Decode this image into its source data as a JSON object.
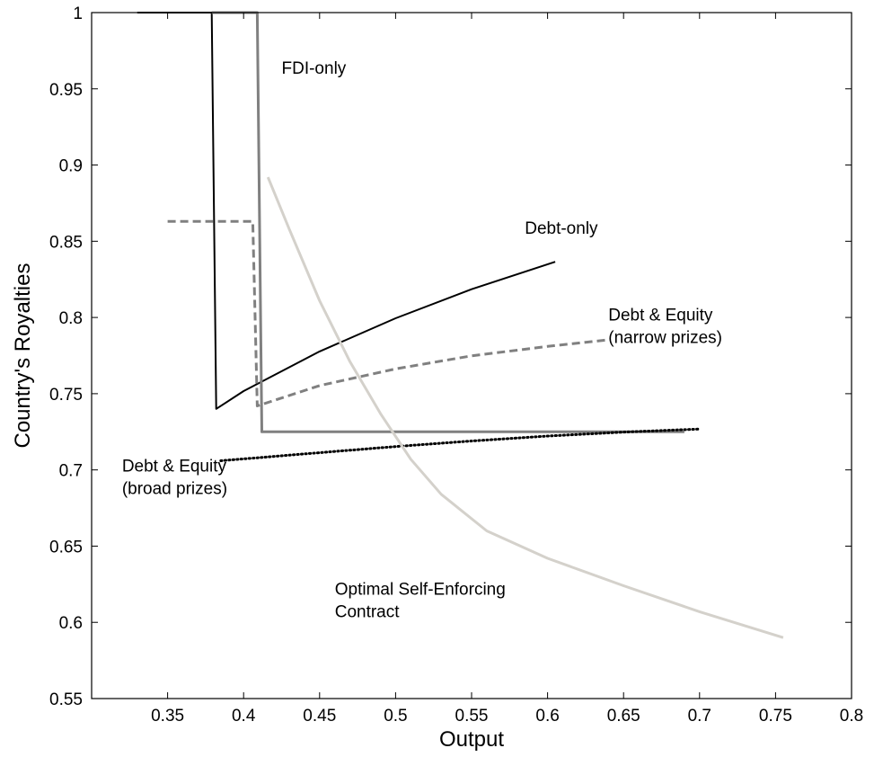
{
  "chart_data": {
    "type": "line",
    "title": "",
    "xlabel": "Output",
    "ylabel": "Country's Royalties",
    "xlim": [
      0.3,
      0.8
    ],
    "ylim": [
      0.55,
      1.0
    ],
    "xticks": [
      0.35,
      0.4,
      0.45,
      0.5,
      0.55,
      0.6,
      0.65,
      0.7,
      0.75,
      0.8
    ],
    "yticks": [
      0.55,
      0.6,
      0.65,
      0.7,
      0.75,
      0.8,
      0.85,
      0.9,
      0.95,
      1.0
    ],
    "xtick_labels": [
      "0.35",
      "0.4",
      "0.45",
      "0.5",
      "0.55",
      "0.6",
      "0.65",
      "0.7",
      "0.75",
      "0.8"
    ],
    "ytick_labels": [
      "0.55",
      "0.6",
      "0.65",
      "0.7",
      "0.75",
      "0.8",
      "0.85",
      "0.9",
      "0.95",
      "1"
    ],
    "grid": false,
    "legend": "none",
    "series": [
      {
        "color": "#000000",
        "style": "solid",
        "width": 2,
        "points": [
          [
            0.33,
            1.0
          ],
          [
            0.379,
            1.0
          ],
          [
            0.382,
            0.74
          ],
          [
            0.4,
            0.7517
          ],
          [
            0.45,
            0.7777
          ],
          [
            0.5,
            0.7995
          ],
          [
            0.55,
            0.8185
          ],
          [
            0.605,
            0.8365
          ]
        ]
      },
      {
        "color": "#808080",
        "style": "solid",
        "width": 3,
        "points": [
          [
            0.379,
            1.0
          ],
          [
            0.409,
            1.0
          ],
          [
            0.412,
            0.725
          ],
          [
            0.69,
            0.725
          ]
        ]
      },
      {
        "color": "#808080",
        "style": "dashed",
        "width": 3,
        "points": [
          [
            0.35,
            0.863
          ],
          [
            0.406,
            0.863
          ],
          [
            0.409,
            0.742
          ],
          [
            0.45,
            0.7553
          ],
          [
            0.5,
            0.7663
          ],
          [
            0.55,
            0.7748
          ],
          [
            0.6,
            0.781
          ],
          [
            0.64,
            0.7853
          ]
        ]
      },
      {
        "color": "#000000",
        "style": "dotted",
        "width": 3,
        "points": [
          [
            0.385,
            0.706
          ],
          [
            0.45,
            0.7113
          ],
          [
            0.5,
            0.7153
          ],
          [
            0.55,
            0.719
          ],
          [
            0.6,
            0.7222
          ],
          [
            0.65,
            0.7248
          ],
          [
            0.7,
            0.7268
          ]
        ]
      },
      {
        "color": "#d4d1cb",
        "style": "solid",
        "width": 3,
        "points": [
          [
            0.416,
            0.892
          ],
          [
            0.43,
            0.858
          ],
          [
            0.45,
            0.811
          ],
          [
            0.47,
            0.771
          ],
          [
            0.49,
            0.737
          ],
          [
            0.51,
            0.707
          ],
          [
            0.53,
            0.684
          ],
          [
            0.56,
            0.66
          ],
          [
            0.6,
            0.642
          ],
          [
            0.65,
            0.624
          ],
          [
            0.7,
            0.607
          ],
          [
            0.755,
            0.59
          ]
        ]
      }
    ],
    "annotations": [
      {
        "lines": [
          "FDI-only"
        ],
        "x": 0.425,
        "y": 0.96
      },
      {
        "lines": [
          "Debt-only"
        ],
        "x": 0.585,
        "y": 0.855
      },
      {
        "lines": [
          "Debt & Equity",
          "(narrow prizes)"
        ],
        "x": 0.64,
        "y": 0.798
      },
      {
        "lines": [
          "Debt & Equity",
          "(broad prizes)"
        ],
        "x": 0.32,
        "y": 0.699
      },
      {
        "lines": [
          "Optimal Self-Enforcing",
          "Contract"
        ],
        "x": 0.46,
        "y": 0.618
      }
    ]
  }
}
